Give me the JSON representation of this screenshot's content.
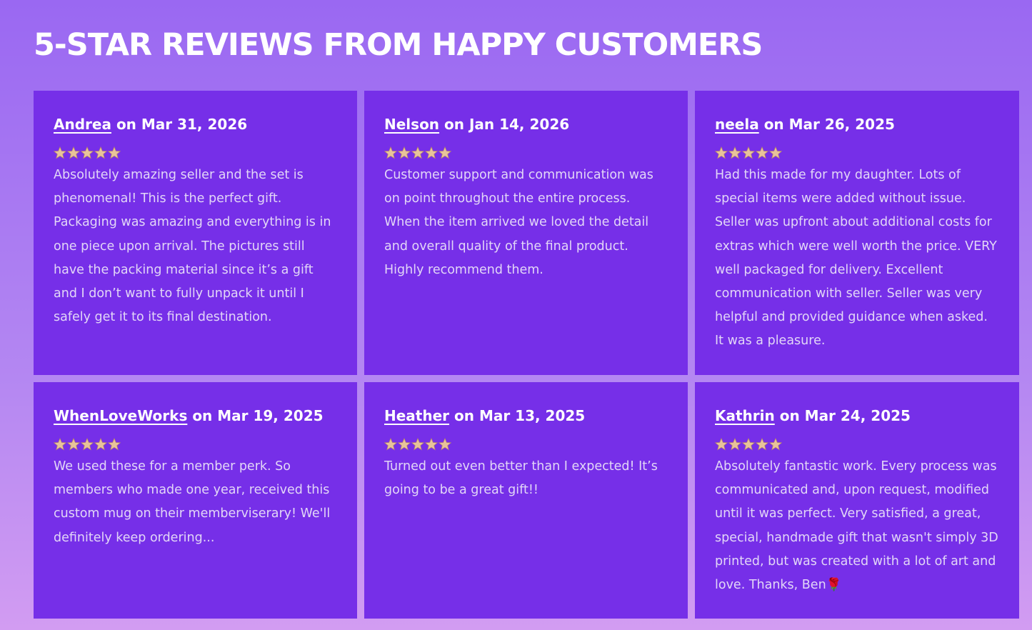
{
  "header": {
    "title": "5-STAR REVIEWS FROM HAPPY CUSTOMERS"
  },
  "reviews": [
    {
      "name": "Andrea",
      "date": "on Mar 31, 2026",
      "rating": 5,
      "text": "Absolutely amazing seller and the set is phenomenal! This is the perfect gift. Packaging was amazing and everything is in one piece upon arrival. The pictures still have the packing material since it’s a gift and I don’t want to fully unpack it until I safely get it to its final destination."
    },
    {
      "name": "Nelson",
      "date": "on Jan 14, 2026",
      "rating": 5,
      "text": "Customer support and communication was on point throughout the entire process. When the item arrived we loved the detail and overall quality of the final product. Highly recommend them."
    },
    {
      "name": "neela",
      "date": "on Mar 26, 2025",
      "rating": 5,
      "text": "Had this made for my daughter. Lots of special items were added without issue. Seller was upfront about additional costs for extras which were well worth the price. VERY well packaged for delivery. Excellent communication with seller. Seller was very helpful and provided guidance when asked. It was a pleasure."
    },
    {
      "name": "WhenLoveWorks",
      "date": "on Mar 19, 2025",
      "rating": 5,
      "text": "We used these for a member perk. So members who made one year, received this custom mug on their memberviserary! We'll definitely keep ordering..."
    },
    {
      "name": "Heather",
      "date": "on Mar 13, 2025",
      "rating": 5,
      "text": "Turned out even better than I expected! It’s going to be a great gift!!"
    },
    {
      "name": "Kathrin",
      "date": "on Mar 24, 2025",
      "rating": 5,
      "text": "Absolutely fantastic work. Every process was communicated and, upon request, modified until it was perfect. Very satisfied, a great, special, handmade gift that wasn't simply 3D printed, but was created with a lot of art and love. Thanks, Ben🌹"
    }
  ]
}
